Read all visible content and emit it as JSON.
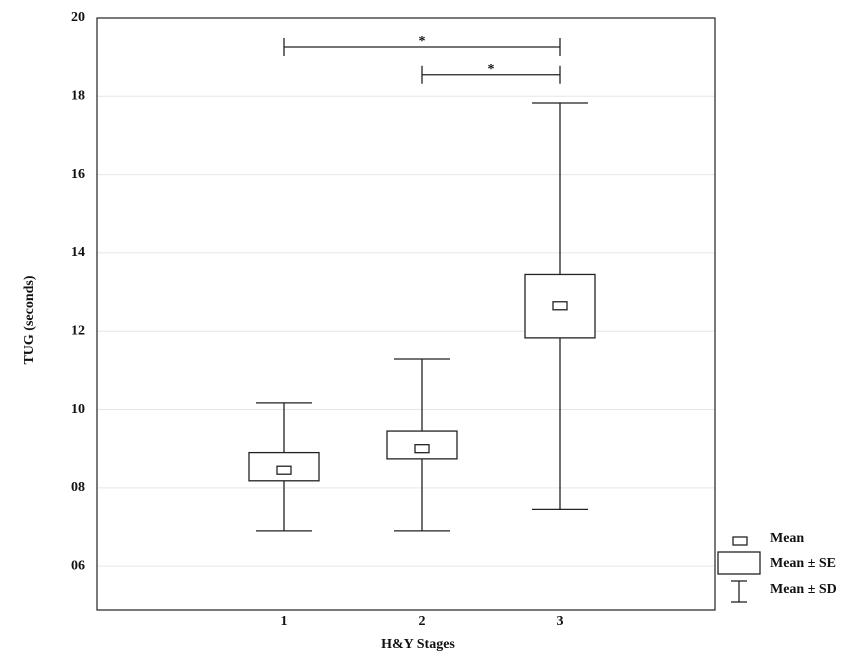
{
  "chart_data": {
    "type": "box",
    "y_label": "TUG (seconds)",
    "x_label": "H&Y Stages",
    "categories": [
      "1",
      "2",
      "3"
    ],
    "mean": [
      8.45,
      9.0,
      12.65
    ],
    "se_lower": [
      8.18,
      8.74,
      11.83
    ],
    "se_upper": [
      8.9,
      9.45,
      13.45
    ],
    "sd_lower": [
      6.9,
      6.9,
      7.45
    ],
    "sd_upper": [
      10.17,
      11.29,
      17.83
    ],
    "ylim": [
      4.88,
      20
    ],
    "yticks": [
      20,
      18,
      16,
      14,
      12,
      10,
      {
        "value": 8,
        "label": "08"
      },
      {
        "value": 6,
        "label": "06"
      }
    ],
    "grid": true,
    "legend": {
      "mean": "Mean",
      "se": "Mean ± SE",
      "sd": "Mean ± SD",
      "position": "outside-bottom-right"
    },
    "annotations": [
      {
        "from": "1",
        "to": "3",
        "y": 19.26,
        "label": "*"
      },
      {
        "from": "2",
        "to": "3",
        "y": 18.55,
        "label": "*"
      }
    ]
  }
}
